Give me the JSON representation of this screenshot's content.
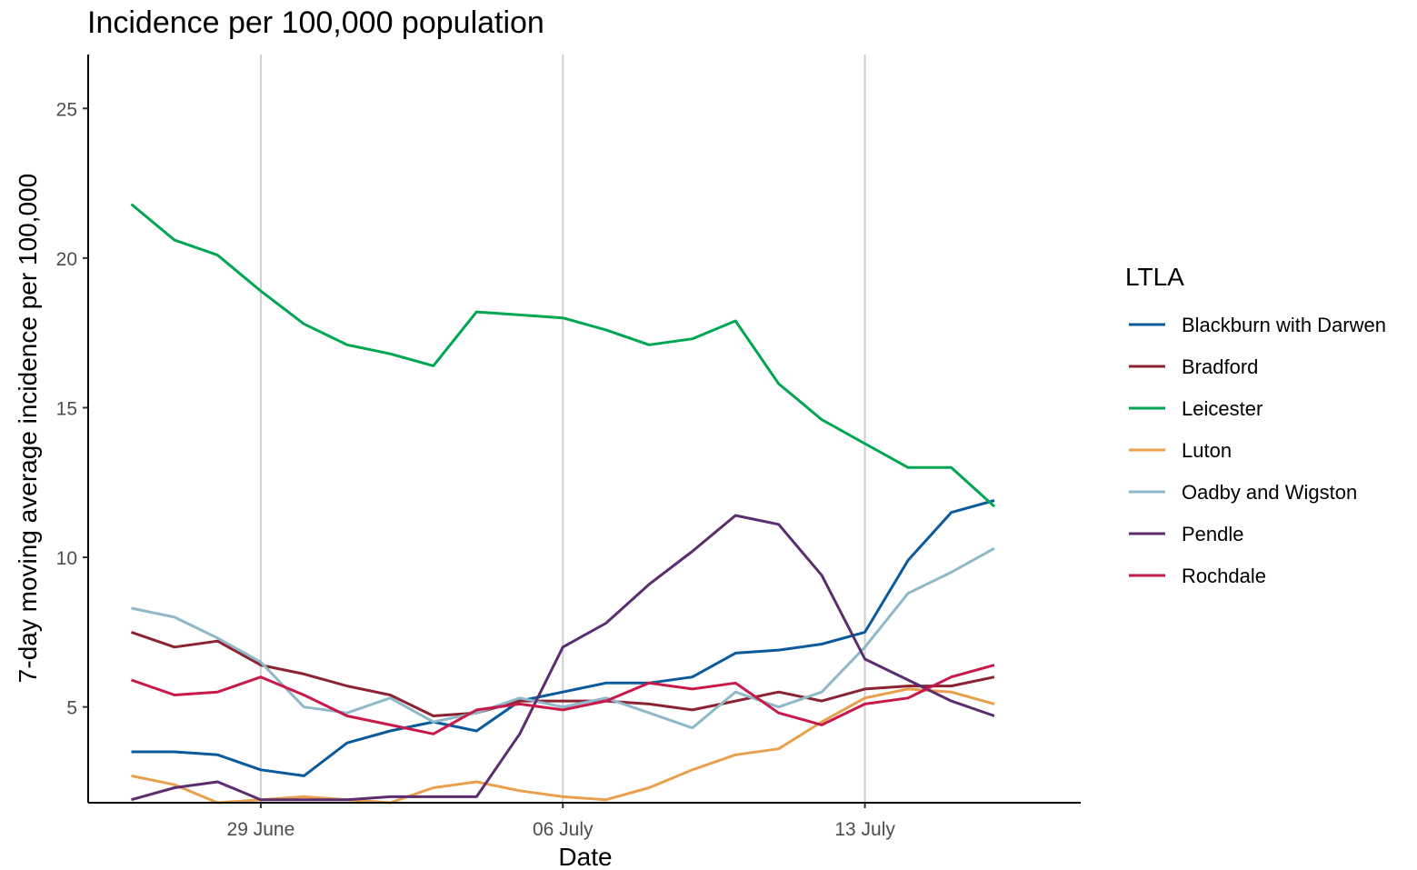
{
  "chart_data": {
    "type": "line",
    "title": "Incidence per 100,000 population",
    "xlabel": "Date",
    "ylabel": "7-day moving average incidence per 100,000",
    "x": [
      "2020-06-26",
      "2020-06-27",
      "2020-06-28",
      "2020-06-29",
      "2020-06-30",
      "2020-07-01",
      "2020-07-02",
      "2020-07-03",
      "2020-07-04",
      "2020-07-05",
      "2020-07-06",
      "2020-07-07",
      "2020-07-08",
      "2020-07-09",
      "2020-07-10",
      "2020-07-11",
      "2020-07-12",
      "2020-07-13",
      "2020-07-14",
      "2020-07-15",
      "2020-07-16",
      "2020-07-17"
    ],
    "x_ticks": [
      {
        "date": "2020-06-29",
        "label": "29 June"
      },
      {
        "date": "2020-07-06",
        "label": "06 July"
      },
      {
        "date": "2020-07-13",
        "label": "13 July"
      }
    ],
    "xlim": [
      "2020-06-25",
      "2020-07-18"
    ],
    "ylim": [
      1.8,
      26.8
    ],
    "y_ticks": [
      5,
      10,
      15,
      20,
      25
    ],
    "grid": "major vertical lines only",
    "legend": {
      "title": "LTLA",
      "position": "right"
    },
    "series": [
      {
        "name": "Blackburn with Darwen",
        "color": "#0a5a9c",
        "values": [
          3.5,
          3.5,
          3.4,
          2.9,
          2.7,
          3.8,
          4.2,
          4.5,
          4.2,
          5.2,
          5.5,
          5.8,
          5.8,
          6.0,
          6.8,
          6.9,
          7.1,
          7.5,
          9.9,
          11.5,
          11.9,
          null
        ]
      },
      {
        "name": "Bradford",
        "color": "#8b2332",
        "values": [
          7.5,
          7.0,
          7.2,
          6.4,
          6.1,
          5.7,
          5.4,
          4.7,
          4.8,
          5.2,
          5.2,
          5.2,
          5.1,
          4.9,
          5.2,
          5.5,
          5.2,
          5.6,
          5.7,
          5.7,
          6.0,
          null
        ]
      },
      {
        "name": "Leicester",
        "color": "#00a651",
        "values": [
          21.8,
          20.6,
          20.1,
          18.9,
          17.8,
          17.1,
          16.8,
          16.4,
          18.2,
          18.1,
          18.0,
          17.6,
          17.1,
          17.3,
          17.9,
          15.8,
          14.6,
          13.8,
          13.0,
          13.0,
          11.7,
          null
        ]
      },
      {
        "name": "Luton",
        "color": "#e8a04c",
        "values": [
          2.7,
          2.4,
          1.8,
          1.9,
          2.0,
          1.9,
          1.8,
          2.3,
          2.5,
          2.2,
          2.0,
          1.9,
          2.3,
          2.9,
          3.4,
          3.6,
          4.5,
          5.3,
          5.6,
          5.5,
          5.1,
          null
        ]
      },
      {
        "name": "Oadby and Wigston",
        "color": "#8fb8c8",
        "values": [
          8.3,
          8.0,
          7.3,
          6.5,
          5.0,
          4.8,
          5.3,
          4.5,
          4.8,
          5.3,
          5.0,
          5.3,
          4.8,
          4.3,
          5.5,
          5.0,
          5.5,
          7.0,
          8.8,
          9.5,
          10.3,
          null
        ]
      },
      {
        "name": "Pendle",
        "color": "#5c2d6e",
        "values": [
          1.9,
          2.3,
          2.5,
          1.9,
          1.9,
          1.9,
          2.0,
          2.0,
          2.0,
          4.1,
          7.0,
          7.8,
          9.1,
          10.2,
          11.4,
          11.1,
          9.4,
          6.6,
          5.9,
          5.2,
          4.7,
          null
        ]
      },
      {
        "name": "Rochdale",
        "color": "#c8194b",
        "values": [
          5.9,
          5.4,
          5.5,
          6.0,
          5.4,
          4.7,
          4.4,
          4.1,
          4.9,
          5.1,
          4.9,
          5.2,
          5.8,
          5.6,
          5.8,
          4.8,
          4.4,
          5.1,
          5.3,
          6.0,
          6.4,
          null
        ]
      }
    ]
  }
}
